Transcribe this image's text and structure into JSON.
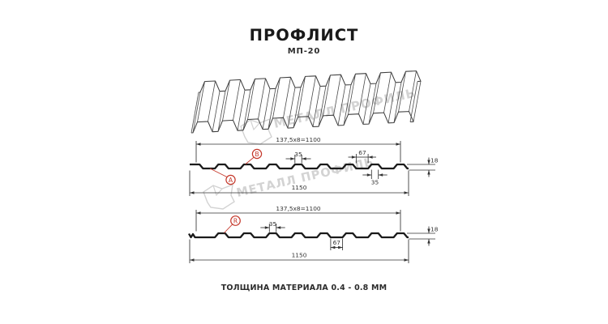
{
  "header": {
    "title": "ПРОФЛИСТ",
    "subtitle": "МП-20"
  },
  "footer": {
    "thickness_note": "ТОЛЩИНА МАТЕРИАЛА 0.4 - 0.8 ММ"
  },
  "watermark": {
    "brand": "МЕТАЛЛ ПРОФИЛЬ"
  },
  "colors": {
    "outline": "#1b1b1b",
    "dimension": "#333333",
    "label_red": "#c5382b",
    "watermark_gray": "#d3d3d3",
    "text_dark": "#222222"
  },
  "section_a": {
    "pitch_label": "137,5x8=1100",
    "overall_width": "1150",
    "rib_top_width": "35",
    "valley_width": "67",
    "profile_height": "18",
    "rib_top_width_right": "35",
    "point_labels": [
      "A",
      "B"
    ]
  },
  "section_b": {
    "pitch_label": "137,5x8=1100",
    "overall_width": "1150",
    "rib_top_width": "35",
    "valley_width": "67",
    "profile_height": "18",
    "point_labels": [
      "R"
    ]
  }
}
